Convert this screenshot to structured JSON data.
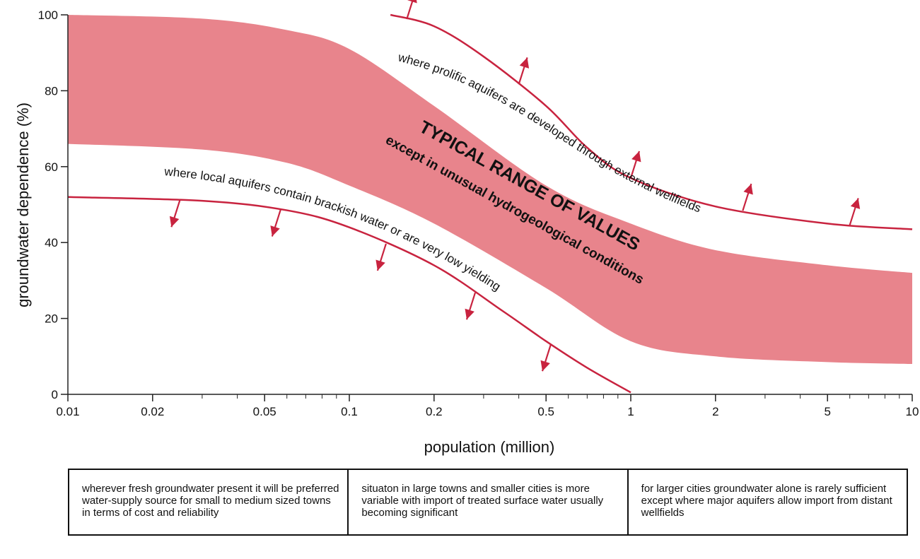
{
  "chart_data": {
    "type": "area",
    "xscale": "log",
    "xlim": [
      0.01,
      10
    ],
    "ylim": [
      0,
      100
    ],
    "xlabel": "population (million)",
    "ylabel": "groundwater dependence (%)",
    "xticks": [
      {
        "value": 0.01,
        "label": "0.01"
      },
      {
        "value": 0.02,
        "label": "0.02"
      },
      {
        "value": 0.05,
        "label": "0.05"
      },
      {
        "value": 0.1,
        "label": "0.1"
      },
      {
        "value": 0.2,
        "label": "0.2"
      },
      {
        "value": 0.5,
        "label": "0.5"
      },
      {
        "value": 1,
        "label": "1"
      },
      {
        "value": 2,
        "label": "2"
      },
      {
        "value": 5,
        "label": "5"
      },
      {
        "value": 10,
        "label": "10"
      }
    ],
    "yticks": [
      {
        "value": 0,
        "label": "0"
      },
      {
        "value": 20,
        "label": "20"
      },
      {
        "value": 40,
        "label": "40"
      },
      {
        "value": 60,
        "label": "60"
      },
      {
        "value": 80,
        "label": "80"
      },
      {
        "value": 100,
        "label": "100"
      }
    ],
    "band": {
      "color": "#e8848c",
      "label_line1": "TYPICAL RANGE OF VALUES",
      "label_line2": "except in unusual hydrogeological conditions",
      "upper": [
        [
          0.01,
          100
        ],
        [
          0.03,
          99
        ],
        [
          0.06,
          96
        ],
        [
          0.1,
          91
        ],
        [
          0.2,
          76
        ],
        [
          0.5,
          55
        ],
        [
          1,
          45
        ],
        [
          2,
          38
        ],
        [
          5,
          34
        ],
        [
          10,
          32
        ]
      ],
      "lower": [
        [
          0.01,
          66
        ],
        [
          0.03,
          64.5
        ],
        [
          0.06,
          61
        ],
        [
          0.1,
          55
        ],
        [
          0.2,
          45
        ],
        [
          0.5,
          28
        ],
        [
          1,
          14
        ],
        [
          2,
          10
        ],
        [
          5,
          8.5
        ],
        [
          10,
          8
        ]
      ]
    },
    "curves": [
      {
        "label": "where prolific aquifers are developed through external wellfields",
        "color": "#c8233f",
        "arrow_direction": "up",
        "points": [
          [
            0.14,
            100
          ],
          [
            0.2,
            97
          ],
          [
            0.3,
            89
          ],
          [
            0.5,
            76
          ],
          [
            0.7,
            65
          ],
          [
            1,
            57
          ],
          [
            2,
            49.5
          ],
          [
            5,
            45
          ],
          [
            10,
            43.5
          ]
        ],
        "arrows_at": [
          0.16,
          0.4,
          1,
          2.5,
          6
        ]
      },
      {
        "label": "where local aquifers contain brackish water or are very low yielding",
        "color": "#c8233f",
        "arrow_direction": "down",
        "points": [
          [
            0.01,
            52
          ],
          [
            0.03,
            51
          ],
          [
            0.06,
            48.5
          ],
          [
            0.1,
            44
          ],
          [
            0.2,
            34
          ],
          [
            0.35,
            22
          ],
          [
            0.5,
            14
          ],
          [
            0.7,
            7
          ],
          [
            1,
            0.5
          ]
        ],
        "arrows_at": [
          0.025,
          0.057,
          0.135,
          0.28,
          0.52
        ]
      }
    ],
    "notes": [
      "wherever fresh groundwater present it will be preferred water-supply source for small to medium sized towns in terms of cost and reliability",
      "situaton in large towns and smaller cities is more variable with import of treated surface water usually becoming significant",
      "for larger cities groundwater alone is rarely sufficient except where major aquifers allow import from distant wellfields"
    ]
  }
}
